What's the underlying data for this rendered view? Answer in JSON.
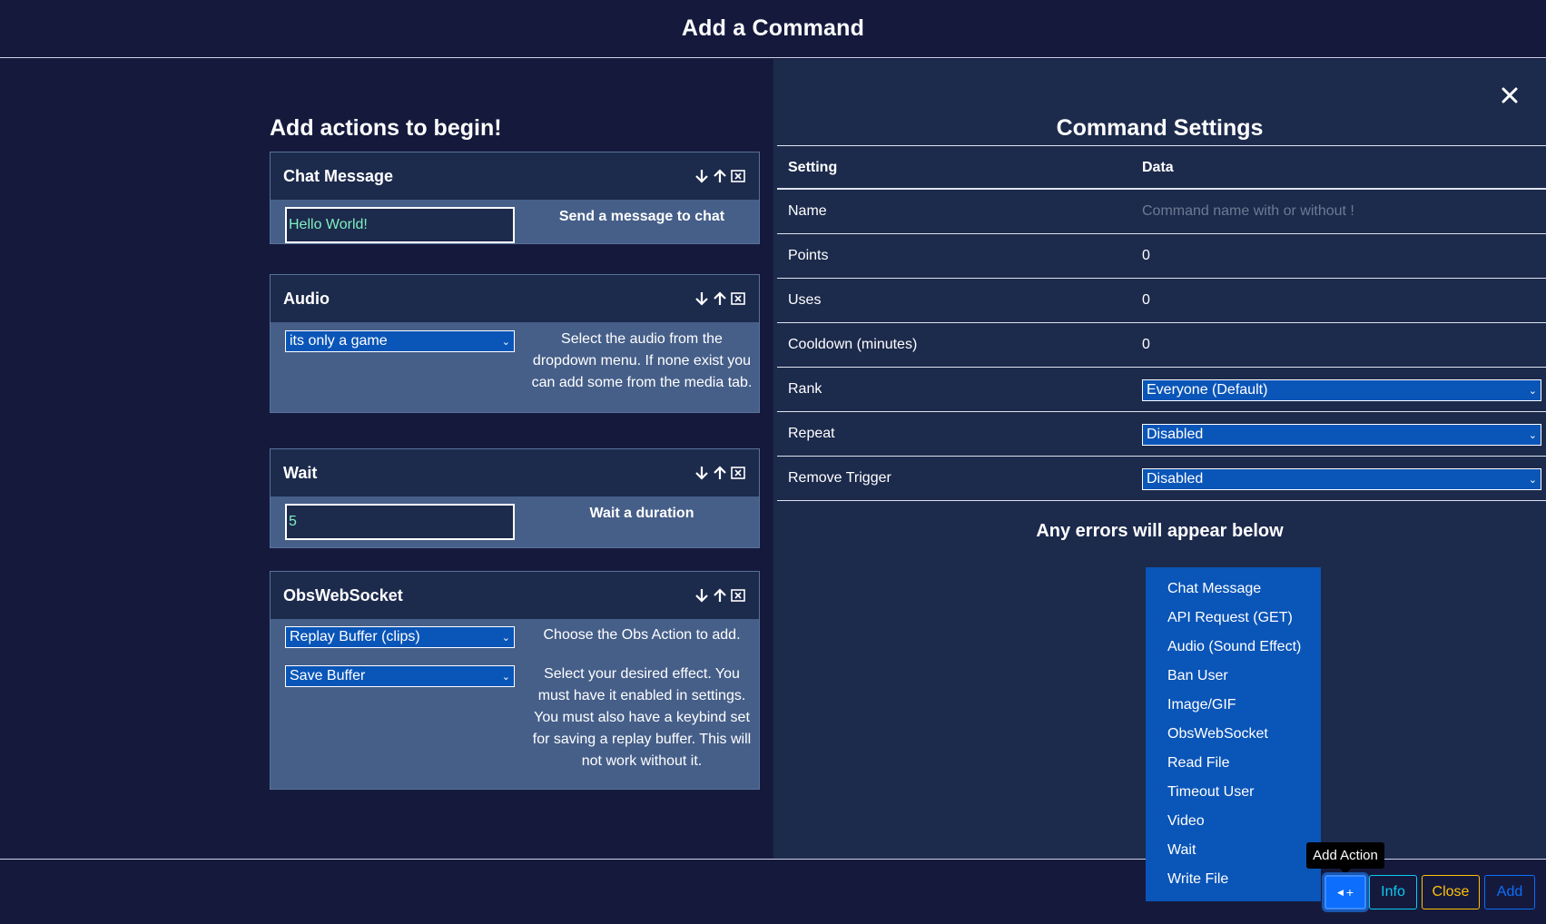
{
  "header": {
    "title": "Add a Command"
  },
  "left": {
    "heading": "Add actions to begin!",
    "actions": [
      {
        "title": "Chat Message",
        "input_value": "Hello World!",
        "description": "Send a message to chat"
      },
      {
        "title": "Audio",
        "select_value": "its only a game",
        "description": "Select the audio from the dropdown menu. If none exist you can add some from the media tab."
      },
      {
        "title": "Wait",
        "input_value": "5",
        "description": "Wait a duration"
      },
      {
        "title": "ObsWebSocket",
        "select1_value": "Replay Buffer (clips)",
        "description1": "Choose the Obs Action to add.",
        "select2_value": "Save Buffer",
        "description2": "Select your desired effect. You must have it enabled in settings. You must also have a keybind set for saving a replay buffer. This will not work without it."
      }
    ]
  },
  "settings": {
    "heading": "Command Settings",
    "col_setting": "Setting",
    "col_data": "Data",
    "rows": {
      "name": {
        "label": "Name",
        "placeholder": "Command name with or without !"
      },
      "points": {
        "label": "Points",
        "value": "0"
      },
      "uses": {
        "label": "Uses",
        "value": "0"
      },
      "cooldown": {
        "label": "Cooldown (minutes)",
        "value": "0"
      },
      "rank": {
        "label": "Rank",
        "value": "Everyone (Default)"
      },
      "repeat": {
        "label": "Repeat",
        "value": "Disabled"
      },
      "remove_trigger": {
        "label": "Remove Trigger",
        "value": "Disabled"
      }
    },
    "errors_text": "Any errors will appear below"
  },
  "action_menu": {
    "items": [
      "Chat Message",
      "API Request (GET)",
      "Audio (Sound Effect)",
      "Ban User",
      "Image/GIF",
      "ObsWebSocket",
      "Read File",
      "Timeout User",
      "Video",
      "Wait",
      "Write File"
    ]
  },
  "footer": {
    "tooltip": "Add Action",
    "add_action_label": "+",
    "info_label": "Info",
    "close_label": "Close",
    "add_label": "Add"
  },
  "colors": {
    "bg": "#151a3d",
    "panel": "#1c2a4c",
    "action_body": "#465f89",
    "select": "#0a55b8",
    "primary": "#0d6efd",
    "info": "#0dcaf0",
    "warning": "#ffc107",
    "input_text": "#7ff0c0"
  }
}
